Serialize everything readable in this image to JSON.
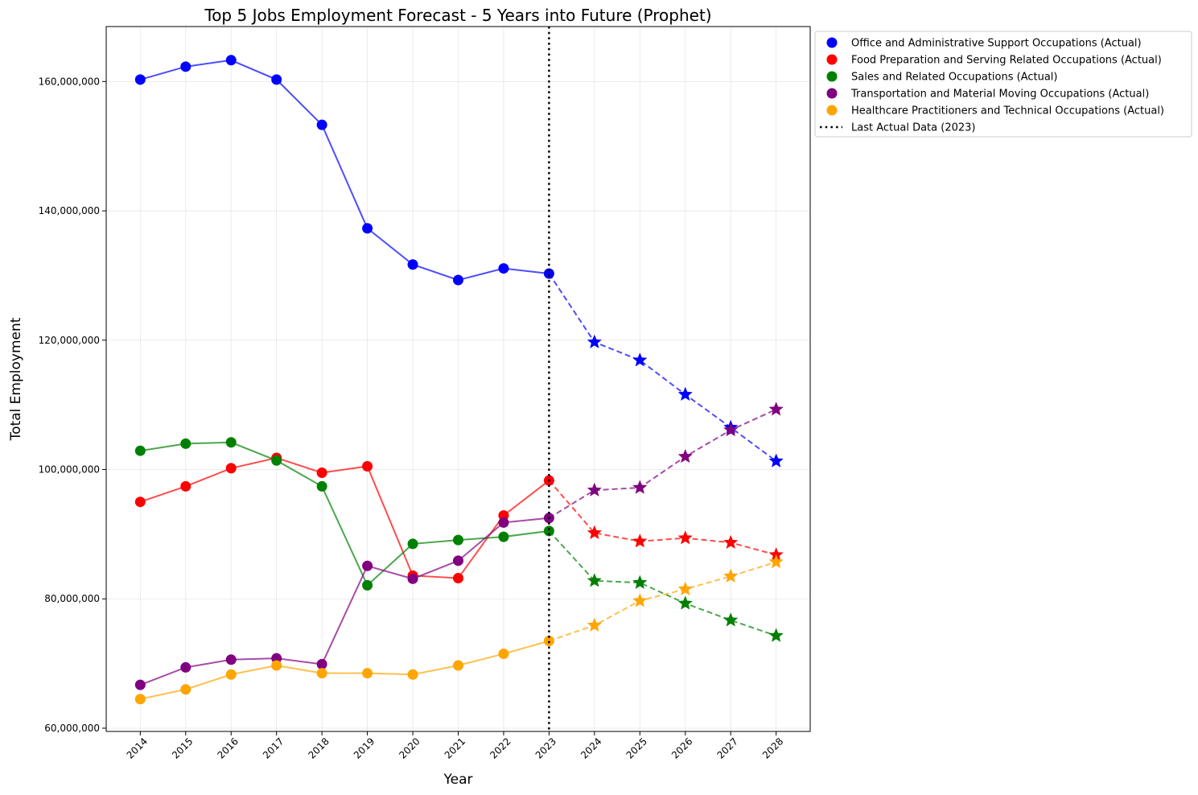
{
  "chart_data": {
    "type": "line",
    "title": "Top 5 Jobs Employment Forecast - 5 Years into Future (Prophet)",
    "xlabel": "Year",
    "ylabel": "Total Employment",
    "ylim": [
      59500000,
      168500000
    ],
    "xlim": [
      2013.25,
      2028.75
    ],
    "x_ticks": [
      2014,
      2015,
      2016,
      2017,
      2018,
      2019,
      2020,
      2021,
      2022,
      2023,
      2024,
      2025,
      2026,
      2027,
      2028
    ],
    "y_ticks": [
      60000000,
      80000000,
      100000000,
      120000000,
      140000000,
      160000000
    ],
    "y_tick_labels": [
      "60,000,000",
      "80,000,000",
      "100,000,000",
      "120,000,000",
      "140,000,000",
      "160,000,000"
    ],
    "grid": true,
    "legend_position": "outside-top-right",
    "actual_years": [
      2014,
      2015,
      2016,
      2017,
      2018,
      2019,
      2020,
      2021,
      2022,
      2023
    ],
    "forecast_years": [
      2024,
      2025,
      2026,
      2027,
      2028
    ],
    "marker_actual": "circle",
    "marker_forecast": "star",
    "series": [
      {
        "name": "Office and Administrative Support Occupations (Actual)",
        "color": "#0000ff",
        "actual": [
          160300000,
          162300000,
          163300000,
          160300000,
          153300000,
          137300000,
          131700000,
          129300000,
          131100000,
          130300000
        ],
        "forecast": [
          119700000,
          116900000,
          111600000,
          106500000,
          101300000
        ]
      },
      {
        "name": "Food Preparation and Serving Related Occupations (Actual)",
        "color": "#ff0000",
        "actual": [
          95000000,
          97400000,
          100200000,
          101800000,
          99500000,
          100500000,
          83600000,
          83200000,
          92900000,
          98300000
        ],
        "forecast": [
          90200000,
          88900000,
          89400000,
          88700000,
          86800000
        ]
      },
      {
        "name": "Sales and Related Occupations (Actual)",
        "color": "#008000",
        "actual": [
          102900000,
          104000000,
          104200000,
          101400000,
          97400000,
          82100000,
          88500000,
          89100000,
          89600000,
          90500000
        ],
        "forecast": [
          82800000,
          82500000,
          79300000,
          76700000,
          74300000
        ]
      },
      {
        "name": "Transportation and Material Moving Occupations (Actual)",
        "color": "#800080",
        "actual": [
          66700000,
          69400000,
          70600000,
          70800000,
          69900000,
          85100000,
          83100000,
          85900000,
          91800000,
          92500000
        ],
        "forecast": [
          96800000,
          97200000,
          102000000,
          106100000,
          109300000
        ]
      },
      {
        "name": "Healthcare Practitioners and Technical Occupations (Actual)",
        "color": "#ffa500",
        "actual": [
          64500000,
          66000000,
          68300000,
          69700000,
          68500000,
          68500000,
          68300000,
          69700000,
          71500000,
          73500000
        ],
        "forecast": [
          75900000,
          79700000,
          81500000,
          83500000,
          85700000
        ]
      }
    ],
    "vline": {
      "x": 2023,
      "label": "Last Actual Data (2023)",
      "style": "dotted",
      "color": "#000000"
    }
  }
}
